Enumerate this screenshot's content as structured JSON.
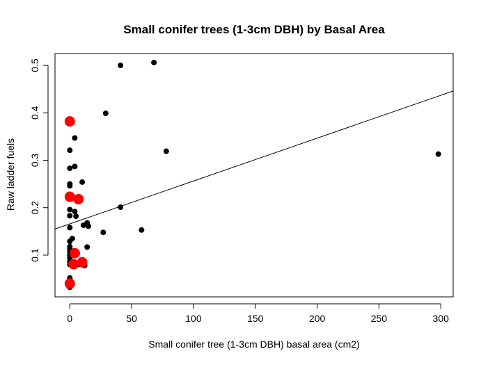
{
  "chart_data": {
    "type": "scatter",
    "title": "Small conifer trees (1-3cm DBH) by Basal Area",
    "xlabel": "Small conifer tree (1-3cm DBH) basal area (cm2)",
    "ylabel": "Raw ladder fuels",
    "xlim": [
      -12,
      310
    ],
    "ylim": [
      0.012,
      0.525
    ],
    "x_ticks": [
      "0",
      "50",
      "100",
      "150",
      "200",
      "250",
      "300"
    ],
    "y_ticks": [
      "0.1",
      "0.2",
      "0.3",
      "0.4",
      "0.5"
    ],
    "grid": false,
    "legend": "none",
    "colors": {
      "black_points": "#000000",
      "red_points": "#ff0000",
      "line": "#000000"
    },
    "regression_line": {
      "x": [
        -12,
        310
      ],
      "y": [
        0.155,
        0.446
      ]
    },
    "series": [
      {
        "color": "#000000",
        "points": [
          {
            "x": 0,
            "y": 0.032
          },
          {
            "x": 0,
            "y": 0.045
          },
          {
            "x": 0,
            "y": 0.052
          },
          {
            "x": 0,
            "y": 0.08
          },
          {
            "x": 0,
            "y": 0.086
          },
          {
            "x": 0,
            "y": 0.094
          },
          {
            "x": 0,
            "y": 0.1
          },
          {
            "x": 0,
            "y": 0.107
          },
          {
            "x": 0,
            "y": 0.113
          },
          {
            "x": 0,
            "y": 0.118
          },
          {
            "x": 0,
            "y": 0.129
          },
          {
            "x": 2,
            "y": 0.135
          },
          {
            "x": 0,
            "y": 0.158
          },
          {
            "x": 0,
            "y": 0.183
          },
          {
            "x": 0,
            "y": 0.196
          },
          {
            "x": 0,
            "y": 0.246
          },
          {
            "x": 0,
            "y": 0.25
          },
          {
            "x": 0,
            "y": 0.283
          },
          {
            "x": 0,
            "y": 0.321
          },
          {
            "x": 4,
            "y": 0.347
          },
          {
            "x": 4,
            "y": 0.287
          },
          {
            "x": 4,
            "y": 0.192
          },
          {
            "x": 5,
            "y": 0.182
          },
          {
            "x": 4,
            "y": 0.076
          },
          {
            "x": 7,
            "y": 0.08
          },
          {
            "x": 10,
            "y": 0.254
          },
          {
            "x": 11,
            "y": 0.163
          },
          {
            "x": 12,
            "y": 0.078
          },
          {
            "x": 14,
            "y": 0.168
          },
          {
            "x": 14,
            "y": 0.117
          },
          {
            "x": 15,
            "y": 0.161
          },
          {
            "x": 27,
            "y": 0.148
          },
          {
            "x": 29,
            "y": 0.399
          },
          {
            "x": 41,
            "y": 0.5
          },
          {
            "x": 41,
            "y": 0.201
          },
          {
            "x": 58,
            "y": 0.153
          },
          {
            "x": 68,
            "y": 0.506
          },
          {
            "x": 78,
            "y": 0.319
          },
          {
            "x": 298,
            "y": 0.313
          }
        ]
      },
      {
        "color": "#ff0000",
        "points": [
          {
            "x": 0,
            "y": 0.382
          },
          {
            "x": 0,
            "y": 0.223
          },
          {
            "x": 7,
            "y": 0.218
          },
          {
            "x": 4,
            "y": 0.104
          },
          {
            "x": 10,
            "y": 0.085
          },
          {
            "x": 3,
            "y": 0.081
          },
          {
            "x": 0,
            "y": 0.04
          }
        ]
      }
    ]
  }
}
